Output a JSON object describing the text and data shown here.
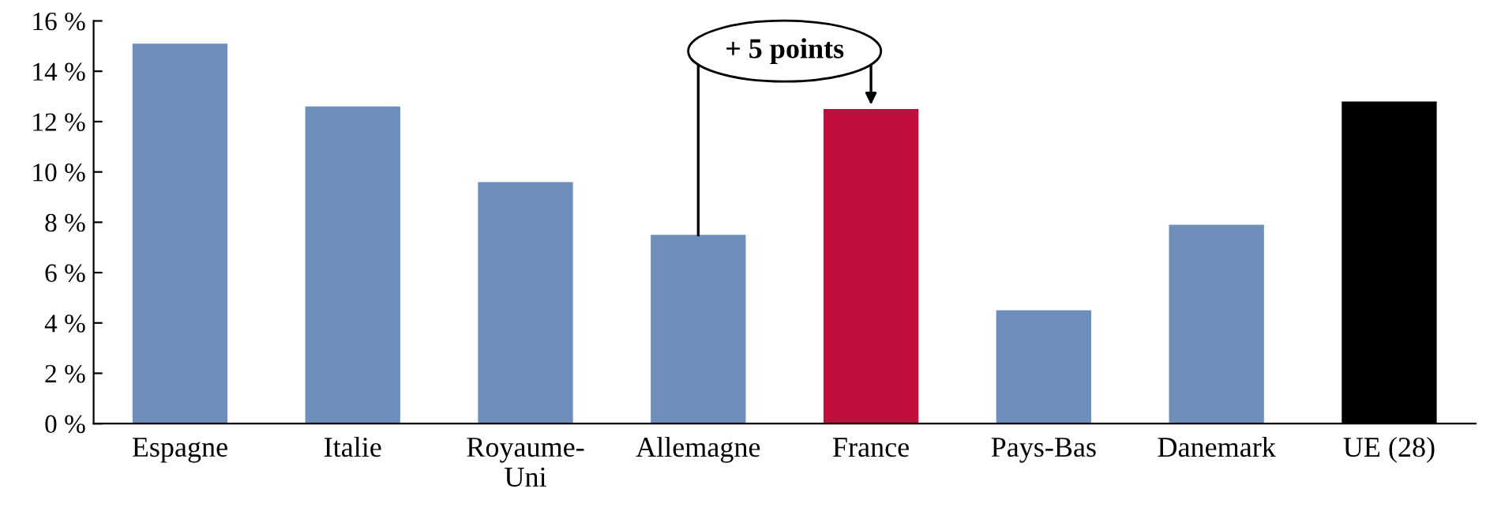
{
  "chart_data": {
    "type": "bar",
    "categories": [
      "Espagne",
      "Italie",
      "Royaume-\nUni",
      "Allemagne",
      "France",
      "Pays-Bas",
      "Danemark",
      "UE (28)"
    ],
    "values": [
      15.1,
      12.6,
      9.6,
      7.5,
      12.5,
      4.5,
      7.9,
      12.8
    ],
    "colors": [
      "#6d8ebb",
      "#6d8ebb",
      "#6d8ebb",
      "#6d8ebb",
      "#c20e3d",
      "#6d8ebb",
      "#6d8ebb",
      "#000000"
    ],
    "ylim": [
      0,
      16
    ],
    "yticks": [
      {
        "value": 0,
        "label": "0 %"
      },
      {
        "value": 2,
        "label": "2 %"
      },
      {
        "value": 4,
        "label": "4 %"
      },
      {
        "value": 6,
        "label": "6 %"
      },
      {
        "value": 8,
        "label": "8 %"
      },
      {
        "value": 10,
        "label": "10 %"
      },
      {
        "value": 12,
        "label": "12 %"
      },
      {
        "value": 14,
        "label": "14 %"
      },
      {
        "value": 16,
        "label": "16 %"
      }
    ],
    "grid": false,
    "annotations": [
      {
        "text": "+ 5 points",
        "x": "France",
        "y": 12.5
      }
    ]
  }
}
